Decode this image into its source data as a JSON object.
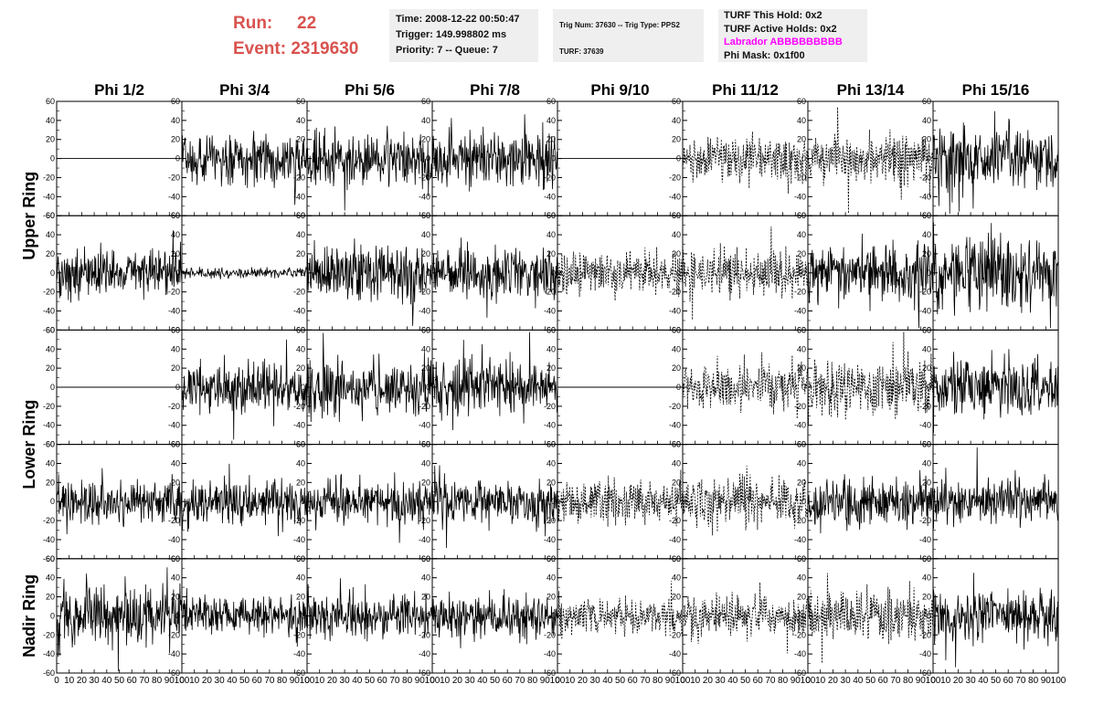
{
  "header": {
    "run_label": "Run:",
    "run_value": "22",
    "event_label": "Event:",
    "event_value": "2319630",
    "time": "Time: 2008-12-22 00:50:47",
    "trigger": "Trigger: 149.998802 ms",
    "priority": "Priority: 7 -- Queue: 7",
    "trig_num": "Trig Num: 37630 -- Trig Type: PPS2",
    "turf": "TURF: 37639",
    "turf_this_hold": "TURF This Hold: 0x2",
    "turf_active_holds": "TURF Active Holds: 0x2",
    "labrador": "Labrador ABBBBBBBBB",
    "phi_mask": "Phi Mask: 0x1f00"
  },
  "colors": {
    "run_text": "#d9534f",
    "labrador_text": "#ff00ff",
    "info_bg": "#efefef",
    "trace": "#000000"
  },
  "chart_data": {
    "type": "line",
    "columns": [
      "Phi 1/2",
      "Phi 3/4",
      "Phi 5/6",
      "Phi 7/8",
      "Phi 9/10",
      "Phi 11/12",
      "Phi 13/14",
      "Phi 15/16"
    ],
    "ring_groups": [
      {
        "name": "Upper Ring",
        "rows": [
          0,
          1
        ]
      },
      {
        "name": "Lower Ring",
        "rows": [
          2,
          3
        ]
      },
      {
        "name": "Nadir Ring",
        "rows": [
          4
        ]
      }
    ],
    "ylim": [
      -60,
      60
    ],
    "xlim": [
      0,
      100
    ],
    "yticks": [
      -60,
      -40,
      -20,
      0,
      20,
      40,
      60
    ],
    "xticks": [
      0,
      10,
      20,
      30,
      40,
      50,
      60,
      70,
      80,
      90,
      100
    ],
    "rows": [
      {
        "amplitude": [
          0,
          14,
          16,
          16,
          0,
          12,
          14,
          18
        ],
        "dashed": [
          false,
          false,
          false,
          false,
          false,
          true,
          true,
          false
        ],
        "flat": [
          true,
          false,
          false,
          false,
          true,
          false,
          false,
          false
        ]
      },
      {
        "amplitude": [
          14,
          3,
          16,
          14,
          12,
          14,
          16,
          20
        ],
        "dashed": [
          false,
          false,
          false,
          false,
          true,
          true,
          false,
          false
        ],
        "flat": [
          false,
          false,
          false,
          false,
          false,
          false,
          false,
          false
        ]
      },
      {
        "amplitude": [
          0,
          14,
          16,
          16,
          0,
          12,
          16,
          16
        ],
        "dashed": [
          false,
          false,
          false,
          false,
          false,
          true,
          true,
          false
        ],
        "flat": [
          true,
          false,
          false,
          false,
          true,
          false,
          false,
          false
        ]
      },
      {
        "amplitude": [
          13,
          13,
          13,
          13,
          12,
          14,
          14,
          13
        ],
        "dashed": [
          false,
          false,
          false,
          false,
          true,
          true,
          false,
          false
        ],
        "flat": [
          false,
          false,
          false,
          false,
          false,
          false,
          false,
          false
        ]
      },
      {
        "amplitude": [
          18,
          10,
          12,
          12,
          10,
          12,
          14,
          15
        ],
        "dashed": [
          false,
          false,
          false,
          false,
          true,
          true,
          true,
          false
        ],
        "flat": [
          false,
          false,
          false,
          false,
          false,
          false,
          false,
          false
        ]
      }
    ]
  }
}
